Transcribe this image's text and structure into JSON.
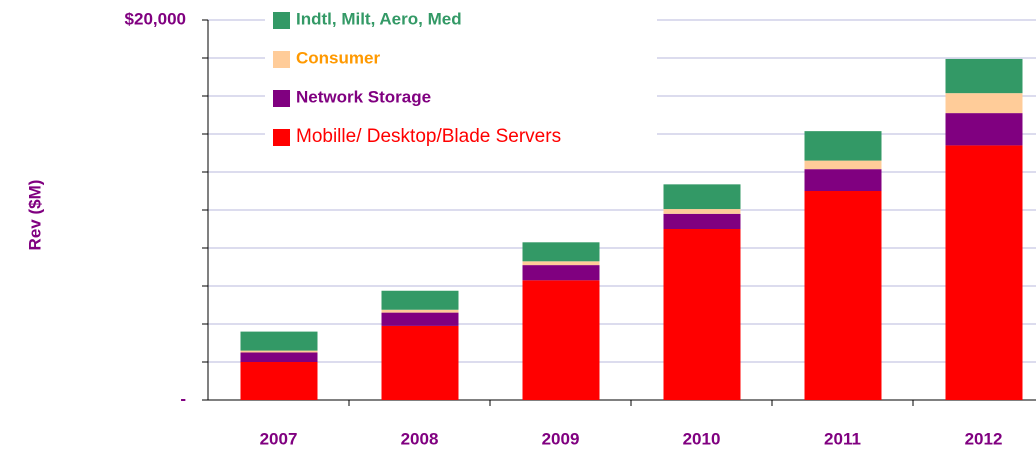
{
  "chart_data": {
    "type": "bar",
    "stacked": true,
    "y_label": "Rev ($M)",
    "categories": [
      "2007",
      "2008",
      "2009",
      "2010",
      "2011",
      "2012"
    ],
    "series": [
      {
        "name": "Mobille/ Desktop/Blade Servers",
        "color": "#ff0000",
        "text_color": "#ff0000",
        "values": [
          2000,
          3900,
          6300,
          9000,
          11000,
          13400
        ]
      },
      {
        "name": "Network Storage",
        "color": "#800080",
        "text_color": "#800080",
        "values": [
          500,
          700,
          800,
          800,
          1150,
          1700
        ]
      },
      {
        "name": "Consumer",
        "color": "#ffcc99",
        "text_color": "#ff9900",
        "values": [
          100,
          150,
          200,
          250,
          450,
          1050
        ]
      },
      {
        "name": "Indtl, Milt, Aero, Med",
        "color": "#339966",
        "text_color": "#339966",
        "values": [
          1000,
          1000,
          1000,
          1300,
          1550,
          1800
        ]
      }
    ],
    "ylim": [
      0,
      20000
    ],
    "yticks": [
      {
        "value": 0,
        "label": "-"
      },
      {
        "value": 2000,
        "label": null
      },
      {
        "value": 4000,
        "label": null
      },
      {
        "value": 6000,
        "label": null
      },
      {
        "value": 8000,
        "label": null
      },
      {
        "value": 10000,
        "label": null
      },
      {
        "value": 12000,
        "label": null
      },
      {
        "value": 14000,
        "label": null
      },
      {
        "value": 16000,
        "label": null
      },
      {
        "value": 18000,
        "label": null
      },
      {
        "value": 20000,
        "label": "$20,000"
      }
    ],
    "grid": true,
    "legend": "top-left",
    "axis_text_color": "#800080"
  }
}
